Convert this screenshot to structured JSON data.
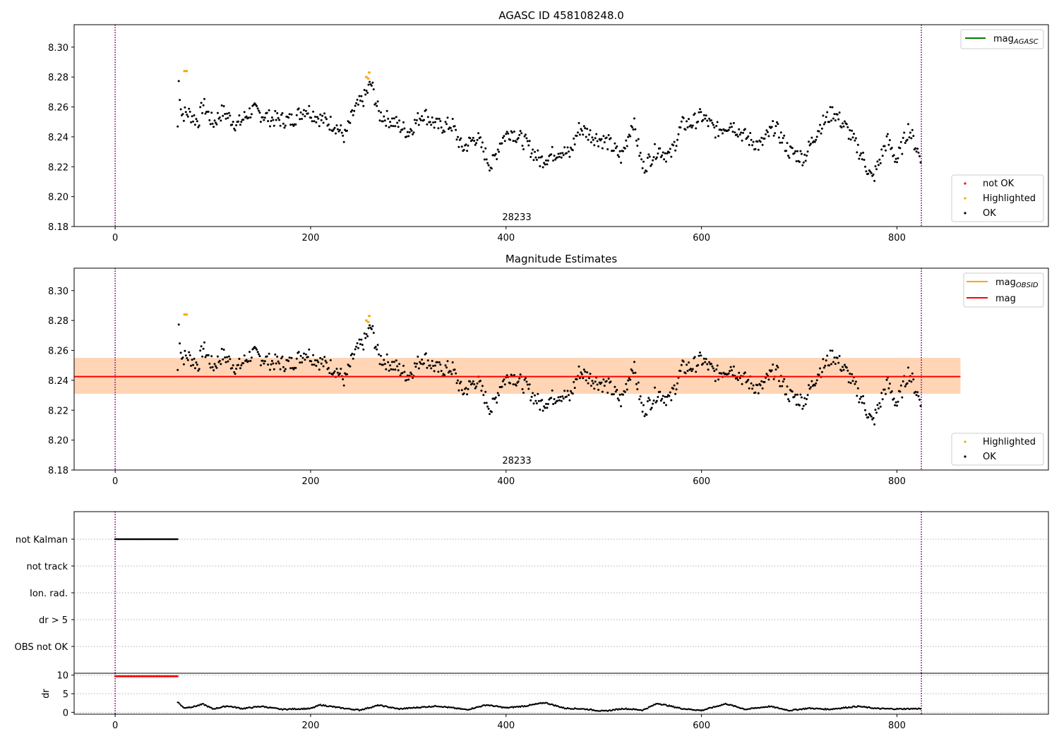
{
  "colors": {
    "ok": "#000000",
    "highlighted": "#ffa500",
    "not_ok": "#ff0000",
    "mag_agasc": "#008000",
    "mag_obsid": "#ffa500",
    "mag": "#ff0000",
    "band_pink": "#ffc0cb",
    "band_orange": "#ffa500",
    "vline": "#800080",
    "grid": "#b0b0b0"
  },
  "chart_data": [
    {
      "type": "scatter",
      "title": "AGASC ID 458108248.0",
      "xlim": [
        -42,
        955
      ],
      "ylim": [
        8.18,
        8.315
      ],
      "xticks": [
        0,
        200,
        400,
        600,
        800
      ],
      "yticks": [
        "8.18",
        "8.20",
        "8.22",
        "8.24",
        "8.26",
        "8.28",
        "8.30"
      ],
      "obsid_label": "28233",
      "vlines": [
        0,
        825
      ],
      "legends": [
        {
          "position": "upper right",
          "entries": [
            {
              "label": "mag",
              "sub": "AGASC",
              "kind": "line",
              "color": "#008000"
            }
          ]
        },
        {
          "position": "lower right",
          "entries": [
            {
              "label": "not OK",
              "kind": "dot",
              "color": "#ff0000"
            },
            {
              "label": "Highlighted",
              "kind": "dot",
              "color": "#ffa500"
            },
            {
              "label": "OK",
              "kind": "dot",
              "color": "#000000"
            }
          ]
        }
      ],
      "series": [
        {
          "name": "OK",
          "points": "ok"
        },
        {
          "name": "Highlighted",
          "points": [
            [
              71,
              8.284
            ],
            [
              73,
              8.284
            ],
            [
              257,
              8.28
            ],
            [
              259,
              8.279
            ],
            [
              260,
              8.283
            ]
          ]
        }
      ]
    },
    {
      "type": "scatter",
      "title": "Magnitude Estimates",
      "xlim": [
        -42,
        955
      ],
      "ylim": [
        8.18,
        8.315
      ],
      "xticks": [
        0,
        200,
        400,
        600,
        800
      ],
      "yticks": [
        "8.18",
        "8.20",
        "8.22",
        "8.24",
        "8.26",
        "8.28",
        "8.30"
      ],
      "obsid_label": "28233",
      "vlines": [
        0,
        825
      ],
      "mag_line": {
        "value": 8.2425,
        "x": [
          -42,
          865
        ]
      },
      "mag_obsid_band": {
        "low": 8.231,
        "high": 8.255,
        "x": [
          -42,
          865
        ]
      },
      "legends": [
        {
          "position": "upper right",
          "entries": [
            {
              "label": "mag",
              "sub": "OBSID",
              "kind": "line",
              "color": "#ffa500"
            },
            {
              "label": "mag",
              "sub": "",
              "kind": "line",
              "color": "#ff0000"
            }
          ]
        },
        {
          "position": "lower right",
          "entries": [
            {
              "label": "Highlighted",
              "kind": "dot",
              "color": "#ffa500"
            },
            {
              "label": "OK",
              "kind": "dot",
              "color": "#000000"
            }
          ]
        }
      ],
      "series": [
        {
          "name": "OK",
          "points": "ok"
        },
        {
          "name": "Highlighted",
          "points": [
            [
              71,
              8.284
            ],
            [
              73,
              8.284
            ],
            [
              257,
              8.28
            ],
            [
              259,
              8.279
            ],
            [
              260,
              8.283
            ]
          ]
        }
      ]
    },
    {
      "type": "scatter",
      "title": "",
      "xlim": [
        -42,
        955
      ],
      "categories": [
        "not Kalman",
        "not track",
        "Ion. rad.",
        "dr > 5",
        "OBS not OK"
      ],
      "flags": [
        {
          "category": "not Kalman",
          "x_range": [
            0,
            64
          ]
        }
      ],
      "vlines": [
        0,
        825
      ]
    },
    {
      "type": "scatter",
      "title": "",
      "xlim": [
        -42,
        955
      ],
      "ylabel": "dr",
      "ylim": [
        -0.5,
        10.5
      ],
      "yticks": [
        "0",
        "5",
        "10"
      ],
      "xticks": [
        0,
        200,
        400,
        600,
        800
      ],
      "vlines": [
        0,
        825
      ],
      "not_ok_range": {
        "x": [
          0,
          64
        ],
        "y": 9.7
      },
      "dr_trend": [
        [
          64,
          2.8
        ],
        [
          70,
          1.2
        ],
        [
          80,
          1.5
        ],
        [
          90,
          2.2
        ],
        [
          100,
          0.9
        ],
        [
          115,
          1.7
        ],
        [
          130,
          1.0
        ],
        [
          150,
          1.6
        ],
        [
          170,
          0.8
        ],
        [
          200,
          1.0
        ],
        [
          210,
          2.0
        ],
        [
          230,
          1.2
        ],
        [
          250,
          0.6
        ],
        [
          270,
          1.9
        ],
        [
          290,
          0.9
        ],
        [
          310,
          1.3
        ],
        [
          330,
          1.7
        ],
        [
          360,
          0.7
        ],
        [
          380,
          2.0
        ],
        [
          400,
          1.2
        ],
        [
          420,
          1.7
        ],
        [
          440,
          2.6
        ],
        [
          460,
          1.1
        ],
        [
          480,
          0.9
        ],
        [
          500,
          0.3
        ],
        [
          520,
          1.0
        ],
        [
          540,
          0.6
        ],
        [
          555,
          2.4
        ],
        [
          580,
          1.0
        ],
        [
          600,
          0.5
        ],
        [
          625,
          2.3
        ],
        [
          645,
          0.8
        ],
        [
          670,
          1.6
        ],
        [
          690,
          0.5
        ],
        [
          710,
          1.1
        ],
        [
          730,
          0.8
        ],
        [
          760,
          1.6
        ],
        [
          780,
          1.0
        ],
        [
          800,
          0.9
        ],
        [
          825,
          1.0
        ]
      ]
    }
  ],
  "mag_trend": [
    [
      64,
      8.247
    ],
    [
      65,
      8.277
    ],
    [
      68,
      8.255
    ],
    [
      75,
      8.256
    ],
    [
      85,
      8.25
    ],
    [
      90,
      8.262
    ],
    [
      100,
      8.249
    ],
    [
      110,
      8.257
    ],
    [
      125,
      8.248
    ],
    [
      140,
      8.258
    ],
    [
      160,
      8.252
    ],
    [
      180,
      8.251
    ],
    [
      195,
      8.259
    ],
    [
      210,
      8.252
    ],
    [
      225,
      8.248
    ],
    [
      235,
      8.24
    ],
    [
      245,
      8.258
    ],
    [
      255,
      8.266
    ],
    [
      262,
      8.276
    ],
    [
      270,
      8.255
    ],
    [
      285,
      8.25
    ],
    [
      300,
      8.243
    ],
    [
      315,
      8.256
    ],
    [
      330,
      8.247
    ],
    [
      345,
      8.248
    ],
    [
      355,
      8.232
    ],
    [
      370,
      8.24
    ],
    [
      385,
      8.22
    ],
    [
      395,
      8.238
    ],
    [
      405,
      8.244
    ],
    [
      420,
      8.236
    ],
    [
      435,
      8.224
    ],
    [
      455,
      8.231
    ],
    [
      465,
      8.228
    ],
    [
      475,
      8.246
    ],
    [
      490,
      8.24
    ],
    [
      505,
      8.236
    ],
    [
      518,
      8.226
    ],
    [
      530,
      8.251
    ],
    [
      540,
      8.219
    ],
    [
      555,
      8.232
    ],
    [
      568,
      8.227
    ],
    [
      580,
      8.248
    ],
    [
      590,
      8.249
    ],
    [
      600,
      8.254
    ],
    [
      615,
      8.244
    ],
    [
      630,
      8.249
    ],
    [
      645,
      8.24
    ],
    [
      660,
      8.234
    ],
    [
      675,
      8.247
    ],
    [
      690,
      8.23
    ],
    [
      705,
      8.226
    ],
    [
      720,
      8.246
    ],
    [
      735,
      8.257
    ],
    [
      750,
      8.244
    ],
    [
      765,
      8.226
    ],
    [
      775,
      8.211
    ],
    [
      790,
      8.238
    ],
    [
      800,
      8.224
    ],
    [
      812,
      8.246
    ],
    [
      825,
      8.224
    ]
  ]
}
